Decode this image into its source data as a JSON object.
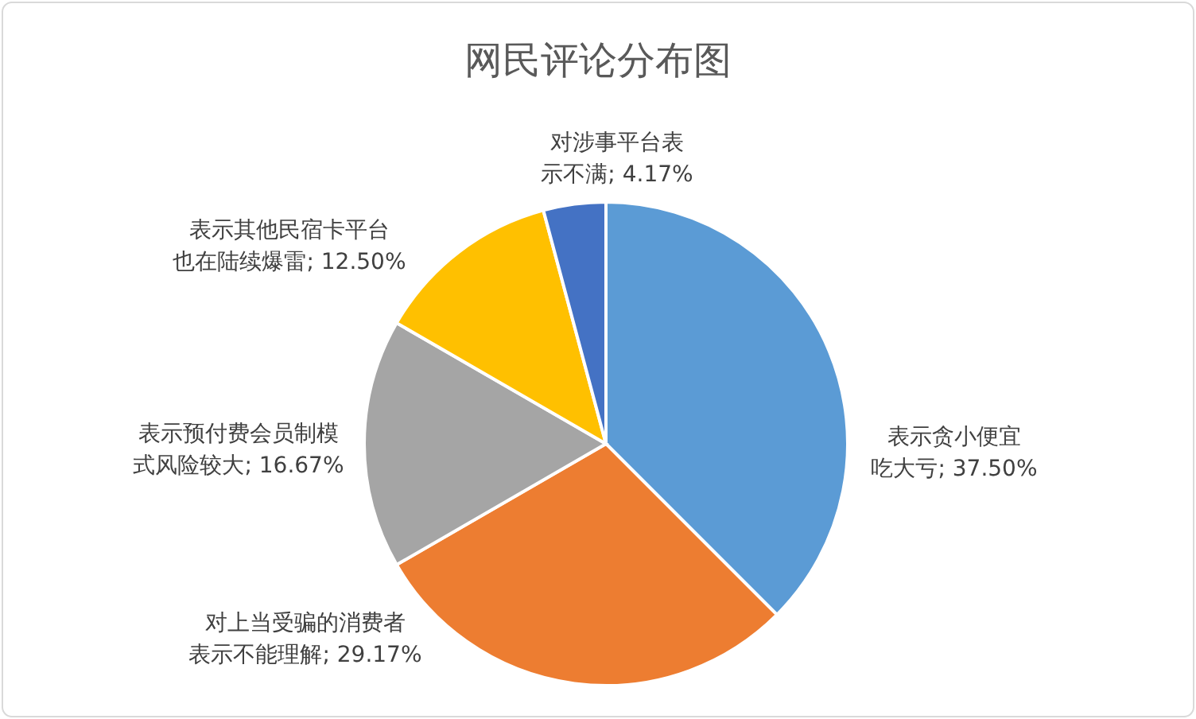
{
  "chart_data": {
    "type": "pie",
    "title": "网民评论分布图",
    "categories": [
      "表示贪小便宜吃大亏",
      "对上当受骗的消费者表示不能理解",
      "表示预付费会员制模式风险较大",
      "表示其他民宿卡平台也在陆续爆雷",
      "对涉事平台表示不满"
    ],
    "values": [
      37.5,
      29.17,
      16.67,
      12.5,
      4.17
    ],
    "value_labels": [
      "; 37.50%",
      "; 29.17%",
      "; 16.67%",
      "; 12.50%",
      "; 4.17%"
    ],
    "colors": [
      "#5b9bd5",
      "#ed7d31",
      "#a5a5a5",
      "#ffc000",
      "#4472c4"
    ],
    "legend": false
  }
}
